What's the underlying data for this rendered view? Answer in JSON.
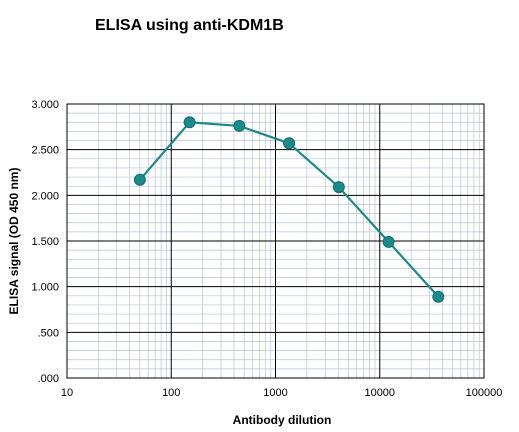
{
  "chart_data": {
    "type": "line",
    "title": "ELISA using anti-KDM1B",
    "xlabel": "Antibody dilution",
    "ylabel": "ELISA signal (OD 450 nm)",
    "x_scale": "log",
    "xlim": [
      10,
      100000
    ],
    "ylim": [
      0,
      3.0
    ],
    "x_ticks": [
      10,
      100,
      1000,
      10000,
      100000
    ],
    "x_tick_labels": [
      "10",
      "100",
      "1000",
      "10000",
      "100000"
    ],
    "y_ticks": [
      0,
      0.5,
      1.0,
      1.5,
      2.0,
      2.5,
      3.0
    ],
    "y_tick_labels": [
      ".000",
      ".500",
      "1.000",
      "1.500",
      "2.000",
      "2.500",
      "3.000"
    ],
    "grid": true,
    "series": [
      {
        "color": "#1a8a8a",
        "x": [
          50,
          150,
          450,
          1350,
          4050,
          12150,
          36450
        ],
        "y": [
          2.17,
          2.8,
          2.76,
          2.57,
          2.09,
          1.49,
          0.89
        ]
      }
    ]
  }
}
